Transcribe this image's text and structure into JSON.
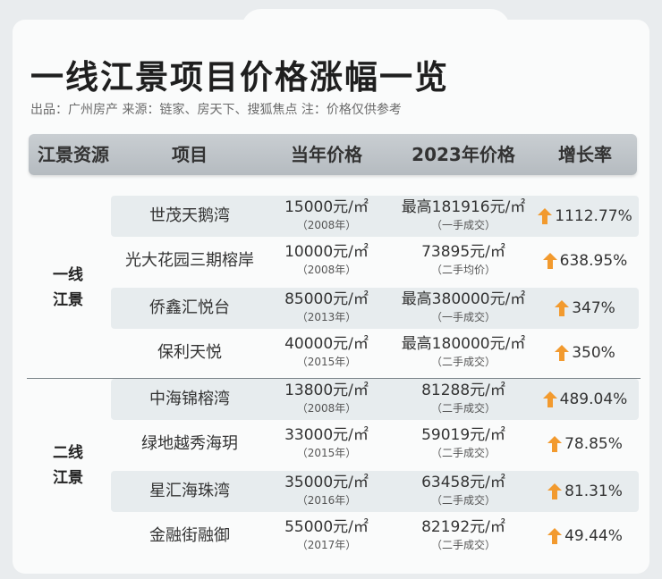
{
  "title": "一线江景项目价格涨幅一览",
  "source": "出品：广州房产   来源：链家、房天下、搜狐焦点 注：价格仅供参考",
  "colors": {
    "arrow": "#f29a2e",
    "header_bg": "#bfc5c9",
    "row_shade": "#e7ecee"
  },
  "table": {
    "headers": [
      "江景资源",
      "项目",
      "当年价格",
      "2023年价格",
      "增长率"
    ],
    "groups": [
      {
        "label_line1": "一线",
        "label_line2": "江景"
      },
      {
        "label_line1": "二线",
        "label_line2": "江景"
      }
    ],
    "rows": [
      {
        "project": "世茂天鹅湾",
        "then_price": "15000元/㎡",
        "then_year": "（2008年）",
        "now_price": "最高181916元/㎡",
        "now_note": "（一手成交）",
        "rate": "1112.77%"
      },
      {
        "project": "光大花园三期榕岸",
        "then_price": "10000元/㎡",
        "then_year": "（2008年）",
        "now_price": "73895元/㎡",
        "now_note": "（二手均价）",
        "rate": "638.95%"
      },
      {
        "project": "侨鑫汇悦台",
        "then_price": "85000元/㎡",
        "then_year": "（2013年）",
        "now_price": "最高380000元/㎡",
        "now_note": "（一手成交）",
        "rate": "347%"
      },
      {
        "project": "保利天悦",
        "then_price": "40000元/㎡",
        "then_year": "（2015年）",
        "now_price": "最高180000元/㎡",
        "now_note": "（二手成交）",
        "rate": "350%"
      },
      {
        "project": "中海锦榕湾",
        "then_price": "13800元/㎡",
        "then_year": "（2008年）",
        "now_price": "81288元/㎡",
        "now_note": "（二手成交）",
        "rate": "489.04%"
      },
      {
        "project": "绿地越秀海玥",
        "then_price": "33000元/㎡",
        "then_year": "（2015年）",
        "now_price": "59019元/㎡",
        "now_note": "（二手成交）",
        "rate": "78.85%"
      },
      {
        "project": "星汇海珠湾",
        "then_price": "35000元/㎡",
        "then_year": "（2016年）",
        "now_price": "63458元/㎡",
        "now_note": "（二手成交）",
        "rate": "81.31%"
      },
      {
        "project": "金融街融御",
        "then_price": "55000元/㎡",
        "then_year": "（2017年）",
        "now_price": "82192元/㎡",
        "now_note": "（二手成交）",
        "rate": "49.44%"
      }
    ]
  }
}
